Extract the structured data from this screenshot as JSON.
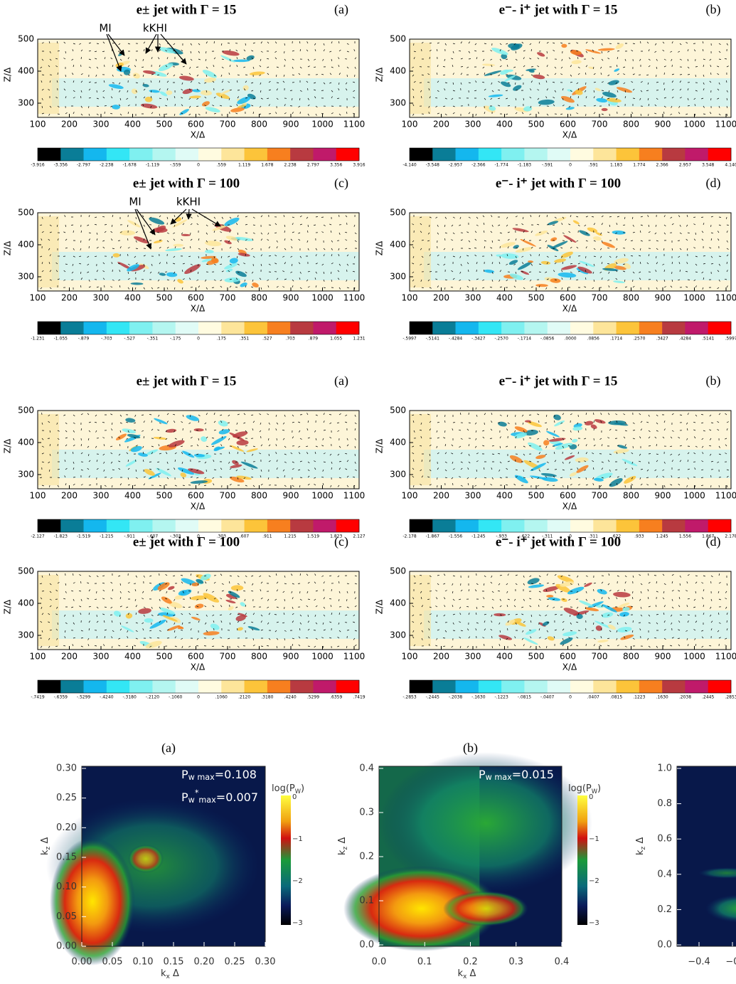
{
  "panels": [
    {
      "title": "e± jet with Γ = 15",
      "letter": "(a)",
      "xlabel": "X/Δ",
      "ylabel": "Z/Δ",
      "xticks": [
        100,
        200,
        300,
        400,
        500,
        600,
        700,
        800,
        900,
        1000,
        1100
      ],
      "yticks": [
        300,
        400,
        500
      ],
      "colorbar": [
        "-3.916",
        "-3.356",
        "-2.797",
        "-2.238",
        "-1.678",
        "-1.119",
        "-.559",
        "0",
        ".559",
        "1.119",
        "1.678",
        "2.238",
        "2.797",
        "3.356",
        "3.916"
      ],
      "annotations": [
        "MI",
        "kKHI"
      ]
    },
    {
      "title": "e⁻- i⁺ jet with Γ = 15",
      "letter": "(b)",
      "xlabel": "X/Δ",
      "ylabel": "Z/Δ",
      "xticks": [
        100,
        200,
        300,
        400,
        500,
        600,
        700,
        800,
        900,
        1000,
        1100
      ],
      "yticks": [
        300,
        400,
        500
      ],
      "colorbar": [
        "-4.140",
        "-3.548",
        "-2.957",
        "-2.366",
        "-1.774",
        "-1.183",
        "-.591",
        "0",
        ".591",
        "1.183",
        "1.774",
        "2.366",
        "2.957",
        "3.548",
        "4.140"
      ]
    },
    {
      "title": "e± jet with Γ = 100",
      "letter": "(c)",
      "xlabel": "X/Δ",
      "ylabel": "Z/Δ",
      "xticks": [
        100,
        200,
        300,
        400,
        500,
        600,
        700,
        800,
        900,
        1000,
        1100
      ],
      "yticks": [
        300,
        400,
        500
      ],
      "colorbar": [
        "-1.231",
        "-1.055",
        "-.879",
        "-.703",
        "-.527",
        "-.351",
        "-.175",
        "0",
        ".175",
        ".351",
        ".527",
        ".703",
        ".879",
        "1.055",
        "1.231"
      ],
      "annotations": [
        "MI",
        "kKHI"
      ]
    },
    {
      "title": "e⁻- i⁺ jet with Γ = 100",
      "letter": "(d)",
      "xlabel": "X/Δ",
      "ylabel": "Z/Δ",
      "xticks": [
        100,
        200,
        300,
        400,
        500,
        600,
        700,
        800,
        900,
        1000,
        1100
      ],
      "yticks": [
        300,
        400,
        500
      ],
      "colorbar": [
        "-.5997",
        "-.5141",
        "-.4284",
        "-.3427",
        "-.2570",
        "-.1714",
        "-.0856",
        ".0000",
        ".0856",
        ".1714",
        ".2570",
        ".3427",
        ".4284",
        ".5141",
        ".5997"
      ]
    },
    {
      "title": "e± jet with Γ = 15",
      "letter": "(a)",
      "xlabel": "X/Δ",
      "ylabel": "Z/Δ",
      "xticks": [
        100,
        200,
        300,
        400,
        500,
        600,
        700,
        800,
        900,
        1000,
        1100
      ],
      "yticks": [
        300,
        400,
        500
      ],
      "colorbar": [
        "-2.127",
        "-1.823",
        "-1.519",
        "-1.215",
        "-.911",
        "-.607",
        "-.303",
        "0",
        ".303",
        ".607",
        ".911",
        "1.215",
        "1.519",
        "1.823",
        "2.127"
      ]
    },
    {
      "title": "e⁻- i⁺ jet with Γ = 15",
      "letter": "(b)",
      "xlabel": "X/Δ",
      "ylabel": "Z/Δ",
      "xticks": [
        100,
        200,
        300,
        400,
        500,
        600,
        700,
        800,
        900,
        1000,
        1100
      ],
      "yticks": [
        300,
        400,
        500
      ],
      "colorbar": [
        "-2.178",
        "-1.867",
        "-1.556",
        "-1.245",
        "-.933",
        "-.622",
        "-.311",
        "0",
        ".311",
        ".622",
        ".933",
        "1.245",
        "1.556",
        "1.867",
        "2.178"
      ]
    },
    {
      "title": "e± jet with Γ = 100",
      "letter": "(c)",
      "xlabel": "X/Δ",
      "ylabel": "Z/Δ",
      "xticks": [
        100,
        200,
        300,
        400,
        500,
        600,
        700,
        800,
        900,
        1000,
        1100
      ],
      "yticks": [
        300,
        400,
        500
      ],
      "colorbar": [
        "-.7419",
        "-.6359",
        "-.5299",
        "-.4240",
        "-.3180",
        "-.2120",
        "-.1060",
        "0",
        ".1060",
        ".2120",
        ".3180",
        ".4240",
        ".5299",
        ".6359",
        ".7419"
      ]
    },
    {
      "title": "e⁻- i⁺ jet with Γ = 100",
      "letter": "(d)",
      "xlabel": "X/Δ",
      "ylabel": "Z/Δ",
      "xticks": [
        100,
        200,
        300,
        400,
        500,
        600,
        700,
        800,
        900,
        1000,
        1100
      ],
      "yticks": [
        300,
        400,
        500
      ],
      "colorbar": [
        "-.2853",
        "-.2445",
        "-.2038",
        "-.1630",
        "-.1223",
        "-.0815",
        "-.0407",
        "0",
        ".0407",
        ".0815",
        ".1223",
        ".1630",
        ".2038",
        ".2445",
        ".2853"
      ]
    }
  ],
  "spectra": [
    {
      "letter": "(a)",
      "xlabel": {
        "symbol": "k",
        "sub": "x",
        "text": " Δ"
      },
      "ylabel": {
        "symbol": "k",
        "sub": "z",
        "text": " Δ"
      },
      "xticks": [
        "0.00",
        "0.05",
        "0.10",
        "0.15",
        "0.20",
        "0.25",
        "0.30"
      ],
      "yticks": [
        "0.00",
        "0.05",
        "0.10",
        "0.15",
        "0.20",
        "0.25",
        "0.30"
      ],
      "colorbar_title": {
        "symbol": "log(P",
        "sub": "W",
        "text": ")"
      },
      "colorbar_ticks": [
        "0",
        "−1",
        "−2",
        "−3"
      ],
      "notes": [
        {
          "symbol": "P",
          "sub": "w max",
          "text": "=0.108"
        },
        {
          "symbol": "P",
          "sub": "w",
          "sup": "*",
          "sub2": "max",
          "text": "=0.007"
        }
      ]
    },
    {
      "letter": "(b)",
      "xlabel": {
        "symbol": "k",
        "sub": "x",
        "text": " Δ"
      },
      "ylabel": {
        "symbol": "k",
        "sub": "z",
        "text": " Δ"
      },
      "xticks": [
        "0.0",
        "0.1",
        "0.2",
        "0.3",
        "0.4"
      ],
      "yticks": [
        "0.0",
        "0.1",
        "0.2",
        "0.3",
        "0.4"
      ],
      "colorbar_title": {
        "symbol": "log(P",
        "sub": "W",
        "text": ")"
      },
      "colorbar_ticks": [
        "0",
        "−1",
        "−2",
        "−3"
      ],
      "notes": [
        {
          "symbol": "P",
          "sub": "w max",
          "text": "=0.015"
        }
      ]
    },
    {
      "ylabel": {
        "symbol": "k",
        "sub": "z",
        "text": " Δ"
      },
      "xticks": [
        "−0.4",
        "−0"
      ],
      "yticks": [
        "0.0",
        "0.2",
        "0.4",
        "0.6",
        "0.8",
        "1.0"
      ]
    }
  ]
}
